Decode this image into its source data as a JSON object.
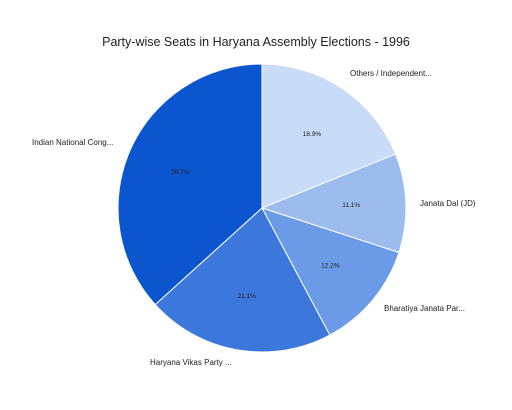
{
  "chart_data": {
    "type": "pie",
    "title": "Party-wise Seats in Haryana Assembly Elections - 1996",
    "legend": "none (slice labels outside)",
    "slices": [
      {
        "label": "Others / Independent...",
        "value": 18.9,
        "value_label": "18.9%",
        "color": "#c8dbf7"
      },
      {
        "label": "Janata Dal (JD)",
        "value": 11.1,
        "value_label": "11.1%",
        "color": "#9dbcee"
      },
      {
        "label": "Bharatiya Janata Par...",
        "value": 12.2,
        "value_label": "12.2%",
        "color": "#6b9be6"
      },
      {
        "label": "Haryana Vikas Party ...",
        "value": 21.1,
        "value_label": "21.1%",
        "color": "#3c78db"
      },
      {
        "label": "Indian National Cong...",
        "value": 36.7,
        "value_label": "36.7%",
        "color": "#0b56cf"
      }
    ]
  }
}
